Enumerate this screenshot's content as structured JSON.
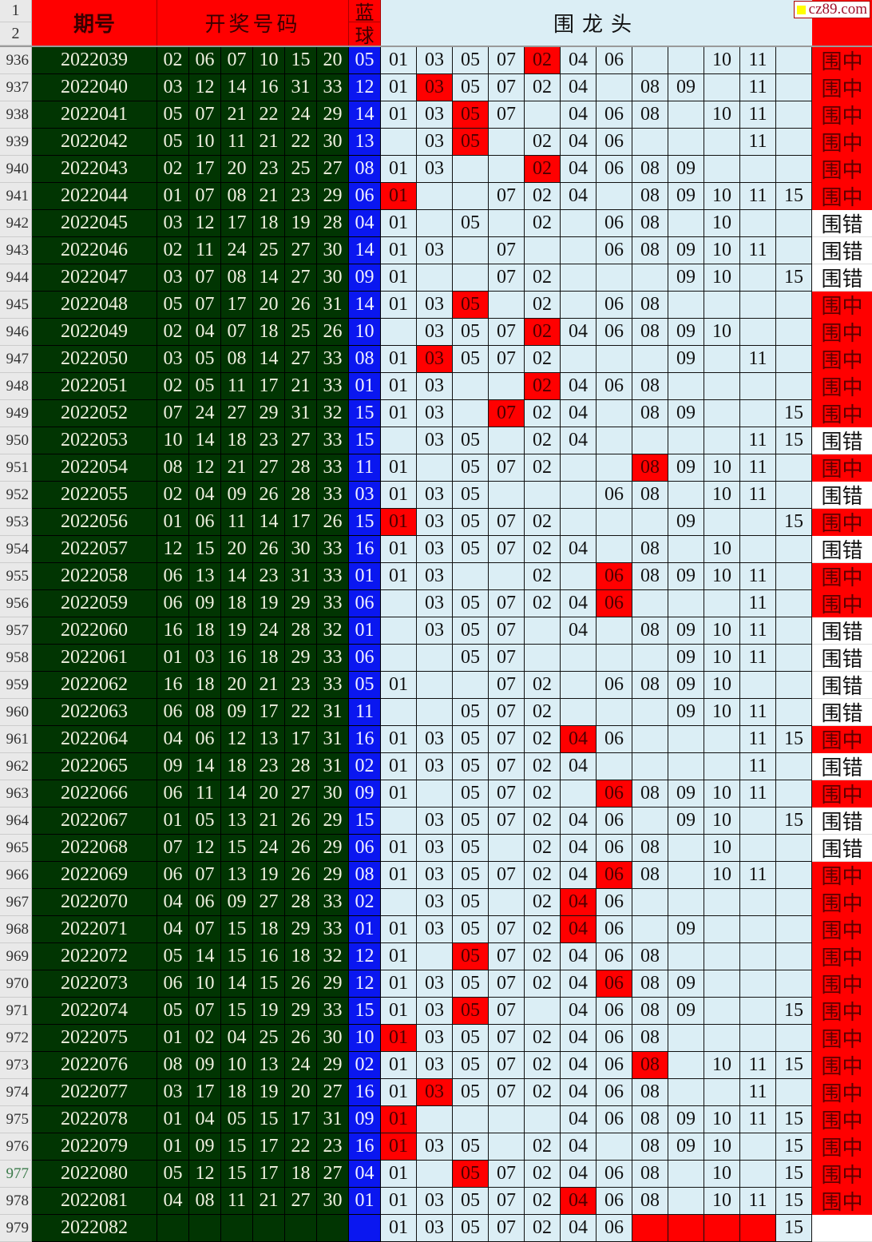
{
  "header": {
    "row1": "1",
    "row2": "2",
    "issue": "期号",
    "draw": "开奖号码",
    "blue_top": "蓝",
    "blue_bottom": "球",
    "long": "围龙头",
    "result": ""
  },
  "watermark": "cz89.com",
  "colors": {
    "hit": "#ff0000",
    "draw_bg": "#013502",
    "blue_bg": "#0a17f0",
    "grid_bg": "#dbeef5"
  },
  "long_columns": [
    "01",
    "03",
    "05",
    "07",
    "02",
    "04",
    "06",
    "08",
    "09",
    "10",
    "11",
    "15"
  ],
  "rows": [
    {
      "row": "936",
      "issue": "2022039",
      "reds": [
        "02",
        "06",
        "07",
        "10",
        "15",
        "20"
      ],
      "blue": "05",
      "cells": [
        "01",
        "03",
        "05",
        "07",
        "02",
        "04",
        "06",
        "",
        "",
        "10",
        "11",
        ""
      ],
      "hits": [
        4
      ],
      "result": "围中"
    },
    {
      "row": "937",
      "issue": "2022040",
      "reds": [
        "03",
        "12",
        "14",
        "16",
        "31",
        "33"
      ],
      "blue": "12",
      "cells": [
        "01",
        "03",
        "05",
        "07",
        "02",
        "04",
        "",
        "08",
        "09",
        "",
        "11",
        ""
      ],
      "hits": [
        1
      ],
      "result": "围中"
    },
    {
      "row": "938",
      "issue": "2022041",
      "reds": [
        "05",
        "07",
        "21",
        "22",
        "24",
        "29"
      ],
      "blue": "14",
      "cells": [
        "01",
        "03",
        "05",
        "07",
        "",
        "04",
        "06",
        "08",
        "",
        "10",
        "11",
        ""
      ],
      "hits": [
        2
      ],
      "result": "围中"
    },
    {
      "row": "939",
      "issue": "2022042",
      "reds": [
        "05",
        "10",
        "11",
        "21",
        "22",
        "30"
      ],
      "blue": "13",
      "cells": [
        "",
        "03",
        "05",
        "",
        "02",
        "04",
        "06",
        "",
        "",
        "",
        "11",
        ""
      ],
      "hits": [
        2
      ],
      "result": "围中"
    },
    {
      "row": "940",
      "issue": "2022043",
      "reds": [
        "02",
        "17",
        "20",
        "23",
        "25",
        "27"
      ],
      "blue": "08",
      "cells": [
        "01",
        "03",
        "",
        "",
        "02",
        "04",
        "06",
        "08",
        "09",
        "",
        "",
        ""
      ],
      "hits": [
        4
      ],
      "result": "围中"
    },
    {
      "row": "941",
      "issue": "2022044",
      "reds": [
        "01",
        "07",
        "08",
        "21",
        "23",
        "29"
      ],
      "blue": "06",
      "cells": [
        "01",
        "",
        "",
        "07",
        "02",
        "04",
        "",
        "08",
        "09",
        "10",
        "11",
        "15"
      ],
      "hits": [
        0
      ],
      "result": "围中"
    },
    {
      "row": "942",
      "issue": "2022045",
      "reds": [
        "03",
        "12",
        "17",
        "18",
        "19",
        "28"
      ],
      "blue": "04",
      "cells": [
        "01",
        "",
        "05",
        "",
        "02",
        "",
        "06",
        "08",
        "",
        "10",
        "",
        ""
      ],
      "hits": [],
      "result": "围错"
    },
    {
      "row": "943",
      "issue": "2022046",
      "reds": [
        "02",
        "11",
        "24",
        "25",
        "27",
        "30"
      ],
      "blue": "14",
      "cells": [
        "01",
        "03",
        "",
        "07",
        "",
        "",
        "06",
        "08",
        "09",
        "10",
        "11",
        ""
      ],
      "hits": [],
      "result": "围错"
    },
    {
      "row": "944",
      "issue": "2022047",
      "reds": [
        "03",
        "07",
        "08",
        "14",
        "27",
        "30"
      ],
      "blue": "09",
      "cells": [
        "01",
        "",
        "",
        "07",
        "02",
        "",
        "",
        "",
        "09",
        "10",
        "",
        "15"
      ],
      "hits": [],
      "result": "围错"
    },
    {
      "row": "945",
      "issue": "2022048",
      "reds": [
        "05",
        "07",
        "17",
        "20",
        "26",
        "31"
      ],
      "blue": "14",
      "cells": [
        "01",
        "03",
        "05",
        "",
        "02",
        "",
        "06",
        "08",
        "",
        "",
        "",
        ""
      ],
      "hits": [
        2
      ],
      "result": "围中"
    },
    {
      "row": "946",
      "issue": "2022049",
      "reds": [
        "02",
        "04",
        "07",
        "18",
        "25",
        "26"
      ],
      "blue": "10",
      "cells": [
        "",
        "03",
        "05",
        "07",
        "02",
        "04",
        "06",
        "08",
        "09",
        "10",
        "",
        ""
      ],
      "hits": [
        4
      ],
      "result": "围中"
    },
    {
      "row": "947",
      "issue": "2022050",
      "reds": [
        "03",
        "05",
        "08",
        "14",
        "27",
        "33"
      ],
      "blue": "08",
      "cells": [
        "01",
        "03",
        "05",
        "07",
        "02",
        "",
        "",
        "",
        "09",
        "",
        "11",
        ""
      ],
      "hits": [
        1
      ],
      "result": "围中"
    },
    {
      "row": "948",
      "issue": "2022051",
      "reds": [
        "02",
        "05",
        "11",
        "17",
        "21",
        "33"
      ],
      "blue": "01",
      "cells": [
        "01",
        "03",
        "",
        "",
        "02",
        "04",
        "06",
        "08",
        "",
        "",
        "",
        ""
      ],
      "hits": [
        4
      ],
      "result": "围中"
    },
    {
      "row": "949",
      "issue": "2022052",
      "reds": [
        "07",
        "24",
        "27",
        "29",
        "31",
        "32"
      ],
      "blue": "15",
      "cells": [
        "01",
        "03",
        "",
        "07",
        "02",
        "04",
        "",
        "08",
        "09",
        "",
        "",
        "15"
      ],
      "hits": [
        3
      ],
      "result": "围中"
    },
    {
      "row": "950",
      "issue": "2022053",
      "reds": [
        "10",
        "14",
        "18",
        "23",
        "27",
        "33"
      ],
      "blue": "15",
      "cells": [
        "",
        "03",
        "05",
        "",
        "02",
        "04",
        "",
        "",
        "",
        "",
        "11",
        "15"
      ],
      "hits": [],
      "result": "围错"
    },
    {
      "row": "951",
      "issue": "2022054",
      "reds": [
        "08",
        "12",
        "21",
        "27",
        "28",
        "33"
      ],
      "blue": "11",
      "cells": [
        "01",
        "",
        "05",
        "07",
        "02",
        "",
        "",
        "08",
        "09",
        "10",
        "11",
        ""
      ],
      "hits": [
        7
      ],
      "result": "围中"
    },
    {
      "row": "952",
      "issue": "2022055",
      "reds": [
        "02",
        "04",
        "09",
        "26",
        "28",
        "33"
      ],
      "blue": "03",
      "cells": [
        "01",
        "03",
        "05",
        "",
        "",
        "",
        "06",
        "08",
        "",
        "10",
        "11",
        ""
      ],
      "hits": [],
      "result": "围错"
    },
    {
      "row": "953",
      "issue": "2022056",
      "reds": [
        "01",
        "06",
        "11",
        "14",
        "17",
        "26"
      ],
      "blue": "15",
      "cells": [
        "01",
        "03",
        "05",
        "07",
        "02",
        "",
        "",
        "",
        "09",
        "",
        "",
        "15"
      ],
      "hits": [
        0
      ],
      "result": "围中"
    },
    {
      "row": "954",
      "issue": "2022057",
      "reds": [
        "12",
        "15",
        "20",
        "26",
        "30",
        "33"
      ],
      "blue": "16",
      "cells": [
        "01",
        "03",
        "05",
        "07",
        "02",
        "04",
        "",
        "08",
        "",
        "10",
        "",
        ""
      ],
      "hits": [],
      "result": "围错"
    },
    {
      "row": "955",
      "issue": "2022058",
      "reds": [
        "06",
        "13",
        "14",
        "23",
        "31",
        "33"
      ],
      "blue": "01",
      "cells": [
        "01",
        "03",
        "",
        "",
        "02",
        "",
        "06",
        "08",
        "09",
        "10",
        "11",
        ""
      ],
      "hits": [
        6
      ],
      "result": "围中"
    },
    {
      "row": "956",
      "issue": "2022059",
      "reds": [
        "06",
        "09",
        "18",
        "19",
        "29",
        "33"
      ],
      "blue": "06",
      "cells": [
        "",
        "03",
        "05",
        "07",
        "02",
        "04",
        "06",
        "",
        "",
        "",
        "11",
        ""
      ],
      "hits": [
        6
      ],
      "result": "围中"
    },
    {
      "row": "957",
      "issue": "2022060",
      "reds": [
        "16",
        "18",
        "19",
        "24",
        "28",
        "32"
      ],
      "blue": "01",
      "cells": [
        "",
        "03",
        "05",
        "07",
        "",
        "04",
        "",
        "08",
        "09",
        "10",
        "11",
        ""
      ],
      "hits": [],
      "result": "围错"
    },
    {
      "row": "958",
      "issue": "2022061",
      "reds": [
        "01",
        "03",
        "16",
        "18",
        "29",
        "33"
      ],
      "blue": "06",
      "cells": [
        "",
        "",
        "05",
        "07",
        "",
        "",
        "",
        "",
        "09",
        "10",
        "11",
        ""
      ],
      "hits": [],
      "result": "围错"
    },
    {
      "row": "959",
      "issue": "2022062",
      "reds": [
        "16",
        "18",
        "20",
        "21",
        "23",
        "33"
      ],
      "blue": "05",
      "cells": [
        "01",
        "",
        "",
        "07",
        "02",
        "",
        "06",
        "08",
        "09",
        "10",
        "",
        ""
      ],
      "hits": [],
      "result": "围错"
    },
    {
      "row": "960",
      "issue": "2022063",
      "reds": [
        "06",
        "08",
        "09",
        "17",
        "22",
        "31"
      ],
      "blue": "11",
      "cells": [
        "",
        "",
        "05",
        "07",
        "02",
        "",
        "",
        "",
        "09",
        "10",
        "11",
        ""
      ],
      "hits": [],
      "result": "围错"
    },
    {
      "row": "961",
      "issue": "2022064",
      "reds": [
        "04",
        "06",
        "12",
        "13",
        "17",
        "31"
      ],
      "blue": "16",
      "cells": [
        "01",
        "03",
        "05",
        "07",
        "02",
        "04",
        "06",
        "",
        "",
        "",
        "11",
        "15"
      ],
      "hits": [
        5
      ],
      "result": "围中"
    },
    {
      "row": "962",
      "issue": "2022065",
      "reds": [
        "09",
        "14",
        "18",
        "23",
        "28",
        "31"
      ],
      "blue": "02",
      "cells": [
        "01",
        "03",
        "05",
        "07",
        "02",
        "04",
        "",
        "",
        "",
        "",
        "11",
        ""
      ],
      "hits": [],
      "result": "围错"
    },
    {
      "row": "963",
      "issue": "2022066",
      "reds": [
        "06",
        "11",
        "14",
        "20",
        "27",
        "30"
      ],
      "blue": "09",
      "cells": [
        "01",
        "",
        "05",
        "07",
        "02",
        "",
        "06",
        "08",
        "09",
        "10",
        "11",
        ""
      ],
      "hits": [
        6
      ],
      "result": "围中"
    },
    {
      "row": "964",
      "issue": "2022067",
      "reds": [
        "01",
        "05",
        "13",
        "21",
        "26",
        "29"
      ],
      "blue": "15",
      "cells": [
        "",
        "03",
        "05",
        "07",
        "02",
        "04",
        "06",
        "",
        "09",
        "10",
        "",
        "15"
      ],
      "hits": [],
      "result": "围错"
    },
    {
      "row": "965",
      "issue": "2022068",
      "reds": [
        "07",
        "12",
        "15",
        "24",
        "26",
        "29"
      ],
      "blue": "06",
      "cells": [
        "01",
        "03",
        "05",
        "",
        "02",
        "04",
        "06",
        "08",
        "",
        "10",
        "",
        ""
      ],
      "hits": [],
      "result": "围错"
    },
    {
      "row": "966",
      "issue": "2022069",
      "reds": [
        "06",
        "07",
        "13",
        "19",
        "26",
        "29"
      ],
      "blue": "08",
      "cells": [
        "01",
        "03",
        "05",
        "07",
        "02",
        "04",
        "06",
        "08",
        "",
        "10",
        "11",
        ""
      ],
      "hits": [
        6
      ],
      "result": "围中"
    },
    {
      "row": "967",
      "issue": "2022070",
      "reds": [
        "04",
        "06",
        "09",
        "27",
        "28",
        "33"
      ],
      "blue": "02",
      "cells": [
        "",
        "03",
        "05",
        "",
        "02",
        "04",
        "06",
        "",
        "",
        "",
        "",
        ""
      ],
      "hits": [
        5
      ],
      "result": "围中"
    },
    {
      "row": "968",
      "issue": "2022071",
      "reds": [
        "04",
        "07",
        "15",
        "18",
        "29",
        "33"
      ],
      "blue": "01",
      "cells": [
        "01",
        "03",
        "05",
        "07",
        "02",
        "04",
        "06",
        "",
        "09",
        "",
        "",
        ""
      ],
      "hits": [
        5
      ],
      "result": "围中"
    },
    {
      "row": "969",
      "issue": "2022072",
      "reds": [
        "05",
        "14",
        "15",
        "16",
        "18",
        "32"
      ],
      "blue": "12",
      "cells": [
        "01",
        "",
        "05",
        "07",
        "02",
        "04",
        "06",
        "08",
        "",
        "",
        "",
        ""
      ],
      "hits": [
        2
      ],
      "result": "围中"
    },
    {
      "row": "970",
      "issue": "2022073",
      "reds": [
        "06",
        "10",
        "14",
        "15",
        "26",
        "29"
      ],
      "blue": "12",
      "cells": [
        "01",
        "03",
        "05",
        "07",
        "02",
        "04",
        "06",
        "08",
        "09",
        "",
        "",
        ""
      ],
      "hits": [
        6
      ],
      "result": "围中"
    },
    {
      "row": "971",
      "issue": "2022074",
      "reds": [
        "05",
        "07",
        "15",
        "19",
        "29",
        "33"
      ],
      "blue": "15",
      "cells": [
        "01",
        "03",
        "05",
        "07",
        "",
        "04",
        "06",
        "08",
        "09",
        "",
        "",
        "15"
      ],
      "hits": [
        2
      ],
      "result": "围中"
    },
    {
      "row": "972",
      "issue": "2022075",
      "reds": [
        "01",
        "02",
        "04",
        "25",
        "26",
        "30"
      ],
      "blue": "10",
      "cells": [
        "01",
        "03",
        "05",
        "07",
        "02",
        "04",
        "06",
        "08",
        "",
        "",
        "",
        ""
      ],
      "hits": [
        0
      ],
      "result": "围中"
    },
    {
      "row": "973",
      "issue": "2022076",
      "reds": [
        "08",
        "09",
        "10",
        "13",
        "24",
        "29"
      ],
      "blue": "02",
      "cells": [
        "01",
        "03",
        "05",
        "07",
        "02",
        "04",
        "06",
        "08",
        "",
        "10",
        "11",
        "15"
      ],
      "hits": [
        7
      ],
      "result": "围中"
    },
    {
      "row": "974",
      "issue": "2022077",
      "reds": [
        "03",
        "17",
        "18",
        "19",
        "20",
        "27"
      ],
      "blue": "16",
      "cells": [
        "01",
        "03",
        "05",
        "07",
        "02",
        "04",
        "06",
        "08",
        "",
        "",
        "11",
        ""
      ],
      "hits": [
        1
      ],
      "result": "围中"
    },
    {
      "row": "975",
      "issue": "2022078",
      "reds": [
        "01",
        "04",
        "05",
        "15",
        "17",
        "31"
      ],
      "blue": "09",
      "cells": [
        "01",
        "",
        "",
        "",
        "",
        "04",
        "06",
        "08",
        "09",
        "10",
        "11",
        "15"
      ],
      "hits": [
        0
      ],
      "result": "围中"
    },
    {
      "row": "976",
      "issue": "2022079",
      "reds": [
        "01",
        "09",
        "15",
        "17",
        "22",
        "23"
      ],
      "blue": "16",
      "cells": [
        "01",
        "03",
        "05",
        "",
        "02",
        "04",
        "",
        "08",
        "09",
        "10",
        "",
        "15"
      ],
      "hits": [
        0
      ],
      "result": "围中"
    },
    {
      "row": "977",
      "issue": "2022080",
      "reds": [
        "05",
        "12",
        "15",
        "17",
        "18",
        "27"
      ],
      "blue": "04",
      "cells": [
        "01",
        "",
        "05",
        "07",
        "02",
        "04",
        "06",
        "08",
        "",
        "10",
        "",
        "15"
      ],
      "hits": [
        2
      ],
      "result": "围中",
      "selected": true
    },
    {
      "row": "978",
      "issue": "2022081",
      "reds": [
        "04",
        "08",
        "11",
        "21",
        "27",
        "30"
      ],
      "blue": "01",
      "cells": [
        "01",
        "03",
        "05",
        "07",
        "02",
        "04",
        "06",
        "08",
        "",
        "10",
        "11",
        "15"
      ],
      "hits": [
        5
      ],
      "result": "围中"
    },
    {
      "row": "979",
      "issue": "2022082",
      "reds": [
        "",
        "",
        "",
        "",
        "",
        ""
      ],
      "blue": "",
      "cells": [
        "01",
        "03",
        "05",
        "07",
        "02",
        "04",
        "06",
        "",
        "",
        "",
        "",
        "15"
      ],
      "hits": [
        7,
        8,
        9,
        10
      ],
      "result": ""
    }
  ]
}
